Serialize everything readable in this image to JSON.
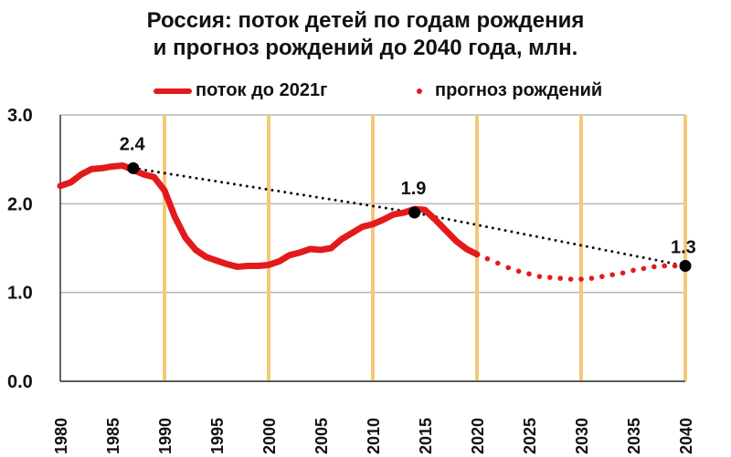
{
  "chart_data": {
    "type": "line",
    "title_lines": [
      "Россия: поток детей по годам рождения",
      "и прогноз рождений до 2040 года, млн."
    ],
    "xlabel": "",
    "ylabel": "",
    "xlim": [
      1980,
      2040
    ],
    "ylim": [
      0,
      3
    ],
    "x_ticks": [
      1980,
      1985,
      1990,
      1995,
      2000,
      2005,
      2010,
      2015,
      2020,
      2025,
      2030,
      2035,
      2040
    ],
    "y_ticks": [
      "0.0",
      "1.0",
      "2.0",
      "3.0"
    ],
    "grid": "horizontal gridlines and orange vertical bands every 10 years",
    "legend_position": "top",
    "colors": {
      "series": "#e31a1c",
      "trend": "#111111",
      "band": "#f4c87a",
      "grid": "#b5b5b5"
    },
    "series": [
      {
        "name": "поток до 2021г",
        "style": "solid",
        "x": [
          1980,
          1981,
          1982,
          1983,
          1984,
          1985,
          1986,
          1987,
          1988,
          1989,
          1990,
          1991,
          1992,
          1993,
          1994,
          1995,
          1996,
          1997,
          1998,
          1999,
          2000,
          2001,
          2002,
          2003,
          2004,
          2005,
          2006,
          2007,
          2008,
          2009,
          2010,
          2011,
          2012,
          2013,
          2014,
          2015,
          2016,
          2017,
          2018,
          2019,
          2020
        ],
        "y": [
          2.2,
          2.24,
          2.33,
          2.39,
          2.4,
          2.42,
          2.43,
          2.38,
          2.33,
          2.3,
          2.15,
          1.85,
          1.62,
          1.48,
          1.4,
          1.36,
          1.32,
          1.29,
          1.3,
          1.3,
          1.31,
          1.35,
          1.42,
          1.45,
          1.49,
          1.48,
          1.5,
          1.6,
          1.67,
          1.74,
          1.77,
          1.82,
          1.88,
          1.9,
          1.94,
          1.93,
          1.82,
          1.7,
          1.58,
          1.49,
          1.43
        ]
      },
      {
        "name": "прогноз рождений",
        "style": "dotted",
        "x": [
          2021,
          2022,
          2023,
          2024,
          2025,
          2026,
          2027,
          2028,
          2029,
          2030,
          2031,
          2032,
          2033,
          2034,
          2035,
          2036,
          2037,
          2038,
          2039
        ],
        "y": [
          1.38,
          1.33,
          1.28,
          1.24,
          1.21,
          1.18,
          1.17,
          1.16,
          1.15,
          1.15,
          1.16,
          1.18,
          1.2,
          1.22,
          1.25,
          1.27,
          1.29,
          1.3,
          1.3
        ]
      }
    ],
    "trend_line": {
      "x": [
        1987,
        2014,
        2040
      ],
      "y": [
        2.4,
        1.9,
        1.3
      ],
      "style": "dotted-black"
    },
    "annotations": [
      {
        "x": 1987,
        "y": 2.4,
        "label": "2.4"
      },
      {
        "x": 2014,
        "y": 1.9,
        "label": "1.9"
      },
      {
        "x": 2040,
        "y": 1.3,
        "label": "1.3"
      }
    ]
  }
}
